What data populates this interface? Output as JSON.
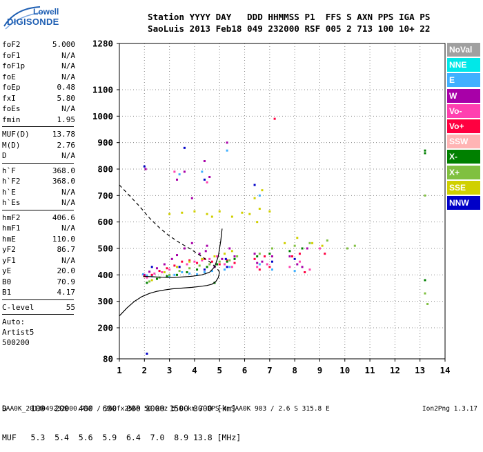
{
  "logo": {
    "line1": "Lowell",
    "line2": "DIGISONDE"
  },
  "header": {
    "line1": "Station YYYY DAY   DDD HHMMSS P1  FFS S AXN PPS IGA PS",
    "line2": "SaoLuis 2013 Feb18 049 232000 RSF 005 2 713 100 10+ 22"
  },
  "params": {
    "group1": [
      {
        "name": "foF2",
        "value": "5.000"
      },
      {
        "name": "foF1",
        "value": "N/A"
      },
      {
        "name": "foF1p",
        "value": "N/A"
      },
      {
        "name": "foE",
        "value": "N/A"
      },
      {
        "name": "foEp",
        "value": "0.48"
      },
      {
        "name": "fxI",
        "value": "5.80"
      },
      {
        "name": "foEs",
        "value": "N/A"
      },
      {
        "name": "fmin",
        "value": "1.95"
      }
    ],
    "group2": [
      {
        "name": "MUF(D)",
        "value": "13.78"
      },
      {
        "name": "M(D)",
        "value": "2.76"
      },
      {
        "name": "D",
        "value": "N/A"
      }
    ],
    "group3": [
      {
        "name": "h`F",
        "value": "368.0"
      },
      {
        "name": "h`F2",
        "value": "368.0"
      },
      {
        "name": "h`E",
        "value": "N/A"
      },
      {
        "name": "h`Es",
        "value": "N/A"
      }
    ],
    "group4": [
      {
        "name": "hmF2",
        "value": "406.6"
      },
      {
        "name": "hmF1",
        "value": "N/A"
      },
      {
        "name": "hmE",
        "value": "110.0"
      },
      {
        "name": "yF2",
        "value": "86.7"
      },
      {
        "name": "yF1",
        "value": "N/A"
      },
      {
        "name": "yE",
        "value": "20.0"
      },
      {
        "name": "B0",
        "value": "70.9"
      },
      {
        "name": "B1",
        "value": "4.17"
      }
    ],
    "group5": [
      {
        "name": "C-level",
        "value": "55"
      }
    ],
    "auto": [
      "Auto:",
      "Artist5",
      "500200"
    ]
  },
  "bottom": {
    "line1": "D     100  200  400  600  800 1000 1500 3000 [km]",
    "line2": "MUF   5.3  5.4  5.6  5.9  6.4  7.0  8.9 13.8 [MHz]"
  },
  "footer": "SAA0K_2013049232000.RSF / 260fx256h 50 kHz 5.0 km / DPS-4 SAA0K 903 / 2.6 S 315.8 E",
  "version": "Ion2Png 1.3.17",
  "legend": [
    {
      "label": "NoVal",
      "color": "#a0a0a0"
    },
    {
      "label": "NNE",
      "color": "#00e8e8"
    },
    {
      "label": "E",
      "color": "#40b0ff"
    },
    {
      "label": "W",
      "color": "#a800a8"
    },
    {
      "label": "Vo-",
      "color": "#ff40b0"
    },
    {
      "label": "Vo+",
      "color": "#ff0040"
    },
    {
      "label": "SSW",
      "color": "#ffb4b4"
    },
    {
      "label": "X-",
      "color": "#008000"
    },
    {
      "label": "X+",
      "color": "#80c040"
    },
    {
      "label": "SSE",
      "color": "#d0d000"
    },
    {
      "label": "NNW",
      "color": "#0000c8"
    }
  ],
  "chart_data": {
    "type": "scatter",
    "xlabel": "",
    "ylabel": "",
    "x_unit": "MHz",
    "y_unit": "km",
    "xlim": [
      1,
      14
    ],
    "ylim": [
      80,
      1280
    ],
    "x_ticks": [
      "1",
      "2",
      "3",
      "4",
      "5",
      "6",
      "7",
      "8",
      "9",
      "10",
      "11",
      "12",
      "13",
      "14"
    ],
    "y_ticks": [
      "80",
      "200",
      "300",
      "400",
      "500",
      "600",
      "700",
      "800",
      "900",
      "1000",
      "1100",
      "1280"
    ],
    "grid": true,
    "legend_placement": "right",
    "series": [
      {
        "name": "E",
        "points": [
          [
            1.95,
            402
          ],
          [
            2.1,
            398
          ],
          [
            2.3,
            395
          ],
          [
            2.6,
            390
          ],
          [
            3.0,
            396
          ],
          [
            3.2,
            400
          ],
          [
            3.5,
            410
          ],
          [
            3.8,
            405
          ],
          [
            4.1,
            402
          ],
          [
            4.4,
            410
          ],
          [
            4.7,
            415
          ],
          [
            5.2,
            420
          ],
          [
            5.4,
            430
          ],
          [
            6.6,
            440
          ],
          [
            7.1,
            420
          ],
          [
            8.0,
            415
          ],
          [
            3.4,
            780
          ],
          [
            4.3,
            790
          ],
          [
            5.3,
            870
          ],
          [
            6.6,
            700
          ]
        ]
      },
      {
        "name": "W",
        "points": [
          [
            2.0,
            400
          ],
          [
            2.2,
            412
          ],
          [
            2.5,
            425
          ],
          [
            2.8,
            440
          ],
          [
            3.1,
            460
          ],
          [
            3.3,
            475
          ],
          [
            3.6,
            500
          ],
          [
            3.9,
            520
          ],
          [
            4.2,
            480
          ],
          [
            4.5,
            510
          ],
          [
            4.8,
            430
          ],
          [
            5.1,
            460
          ],
          [
            5.4,
            500
          ],
          [
            5.6,
            470
          ],
          [
            6.4,
            480
          ],
          [
            6.7,
            450
          ],
          [
            7.1,
            470
          ],
          [
            7.8,
            470
          ],
          [
            8.1,
            440
          ],
          [
            8.5,
            500
          ],
          [
            3.3,
            760
          ],
          [
            3.6,
            790
          ],
          [
            4.4,
            830
          ],
          [
            4.6,
            770
          ],
          [
            2.05,
            800
          ],
          [
            4.45,
            490
          ],
          [
            5.3,
            900
          ],
          [
            3.9,
            690
          ],
          [
            8.3,
            430
          ],
          [
            6.5,
            445
          ]
        ]
      },
      {
        "name": "Vo-",
        "points": [
          [
            2.1,
            390
          ],
          [
            2.4,
            405
          ],
          [
            2.7,
            410
          ],
          [
            3.0,
            420
          ],
          [
            3.4,
            430
          ],
          [
            3.7,
            440
          ],
          [
            4.0,
            450
          ],
          [
            4.3,
            455
          ],
          [
            4.6,
            460
          ],
          [
            4.9,
            470
          ],
          [
            5.2,
            440
          ],
          [
            5.5,
            430
          ],
          [
            6.5,
            430
          ],
          [
            6.9,
            440
          ],
          [
            7.8,
            430
          ],
          [
            8.2,
            450
          ],
          [
            8.6,
            420
          ],
          [
            3.2,
            790
          ],
          [
            4.5,
            750
          ],
          [
            9.0,
            500
          ]
        ]
      },
      {
        "name": "Vo+",
        "points": [
          [
            2.0,
            395
          ],
          [
            2.3,
            400
          ],
          [
            2.6,
            415
          ],
          [
            2.9,
            425
          ],
          [
            3.2,
            435
          ],
          [
            3.5,
            450
          ],
          [
            3.8,
            455
          ],
          [
            4.1,
            445
          ],
          [
            4.4,
            460
          ],
          [
            4.7,
            450
          ],
          [
            5.0,
            440
          ],
          [
            5.3,
            455
          ],
          [
            5.6,
            445
          ],
          [
            6.4,
            460
          ],
          [
            6.8,
            470
          ],
          [
            7.0,
            430
          ],
          [
            7.9,
            470
          ],
          [
            8.2,
            480
          ],
          [
            8.4,
            410
          ],
          [
            9.2,
            480
          ],
          [
            6.6,
            420
          ],
          [
            7.2,
            990
          ]
        ]
      },
      {
        "name": "X-",
        "points": [
          [
            2.1,
            370
          ],
          [
            2.5,
            385
          ],
          [
            2.9,
            395
          ],
          [
            3.3,
            400
          ],
          [
            3.7,
            410
          ],
          [
            4.1,
            420
          ],
          [
            4.5,
            430
          ],
          [
            4.9,
            440
          ],
          [
            5.3,
            450
          ],
          [
            5.6,
            460
          ],
          [
            6.5,
            470
          ],
          [
            7.0,
            480
          ],
          [
            7.8,
            490
          ],
          [
            8.3,
            500
          ],
          [
            13.2,
            380
          ],
          [
            13.2,
            860
          ],
          [
            13.2,
            870
          ],
          [
            4.8,
            370
          ]
        ]
      },
      {
        "name": "X+",
        "points": [
          [
            2.2,
            375
          ],
          [
            2.6,
            390
          ],
          [
            3.0,
            400
          ],
          [
            3.4,
            415
          ],
          [
            3.8,
            425
          ],
          [
            4.2,
            435
          ],
          [
            4.6,
            440
          ],
          [
            5.0,
            450
          ],
          [
            5.4,
            455
          ],
          [
            5.7,
            470
          ],
          [
            6.6,
            480
          ],
          [
            7.1,
            500
          ],
          [
            8.0,
            510
          ],
          [
            8.6,
            520
          ],
          [
            9.3,
            530
          ],
          [
            10.1,
            500
          ],
          [
            10.4,
            510
          ],
          [
            13.3,
            290
          ],
          [
            13.2,
            700
          ],
          [
            13.2,
            330
          ]
        ]
      },
      {
        "name": "SSE",
        "points": [
          [
            2.3,
            380
          ],
          [
            2.8,
            410
          ],
          [
            3.3,
            430
          ],
          [
            3.8,
            450
          ],
          [
            4.3,
            460
          ],
          [
            4.8,
            470
          ],
          [
            5.2,
            480
          ],
          [
            5.5,
            490
          ],
          [
            6.2,
            630
          ],
          [
            6.6,
            650
          ],
          [
            7.0,
            640
          ],
          [
            3.0,
            630
          ],
          [
            3.5,
            635
          ],
          [
            4.0,
            640
          ],
          [
            4.5,
            630
          ],
          [
            5.0,
            640
          ],
          [
            5.5,
            620
          ],
          [
            6.4,
            690
          ],
          [
            6.7,
            720
          ],
          [
            7.6,
            520
          ],
          [
            8.1,
            540
          ],
          [
            8.7,
            520
          ],
          [
            9.1,
            510
          ],
          [
            6.5,
            600
          ],
          [
            5.9,
            635
          ],
          [
            4.7,
            620
          ]
        ]
      },
      {
        "name": "NNW",
        "points": [
          [
            2.0,
            810
          ],
          [
            2.3,
            430
          ],
          [
            3.4,
            430
          ],
          [
            4.4,
            420
          ],
          [
            5.3,
            430
          ],
          [
            6.4,
            740
          ],
          [
            7.1,
            450
          ],
          [
            8.0,
            460
          ],
          [
            2.1,
            100
          ],
          [
            5.25,
            460
          ],
          [
            3.6,
            880
          ],
          [
            4.4,
            760
          ]
        ]
      }
    ],
    "curves": [
      {
        "name": "O-trace (virtual height)",
        "style": "solid",
        "points": [
          [
            1.0,
            245
          ],
          [
            1.3,
            275
          ],
          [
            1.6,
            300
          ],
          [
            1.9,
            318
          ],
          [
            2.2,
            330
          ],
          [
            2.5,
            338
          ],
          [
            2.8,
            343
          ],
          [
            3.1,
            347
          ],
          [
            3.5,
            350
          ],
          [
            3.9,
            353
          ],
          [
            4.2,
            356
          ],
          [
            4.5,
            360
          ],
          [
            4.7,
            365
          ],
          [
            4.85,
            375
          ],
          [
            4.95,
            390
          ],
          [
            5.0,
            410
          ]
        ]
      },
      {
        "name": "Profile (real height)",
        "style": "solid",
        "points": [
          [
            1.95,
            395
          ],
          [
            2.3,
            393
          ],
          [
            2.7,
            391
          ],
          [
            3.1,
            390
          ],
          [
            3.5,
            392
          ],
          [
            3.9,
            395
          ],
          [
            4.3,
            400
          ],
          [
            4.6,
            410
          ],
          [
            4.8,
            430
          ],
          [
            4.95,
            470
          ],
          [
            5.05,
            530
          ],
          [
            5.1,
            575
          ]
        ]
      },
      {
        "name": "Model extrapolation",
        "style": "dashed",
        "points": [
          [
            1.0,
            740
          ],
          [
            1.4,
            700
          ],
          [
            1.8,
            660
          ],
          [
            2.2,
            615
          ],
          [
            2.6,
            578
          ],
          [
            3.0,
            547
          ],
          [
            3.4,
            522
          ],
          [
            3.8,
            500
          ],
          [
            4.2,
            475
          ],
          [
            4.6,
            450
          ],
          [
            4.9,
            425
          ],
          [
            5.0,
            410
          ]
        ]
      }
    ]
  }
}
